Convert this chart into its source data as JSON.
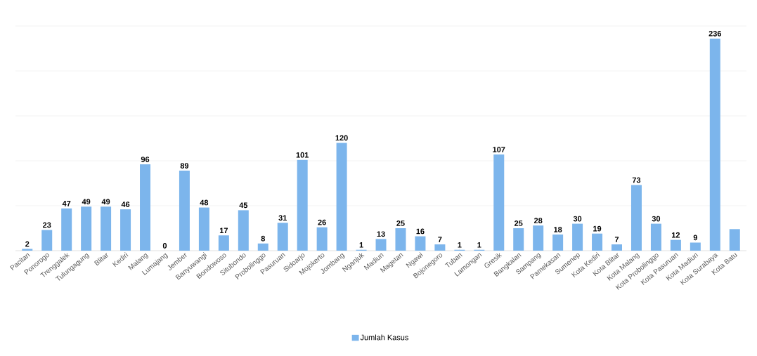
{
  "chart_data": {
    "type": "bar",
    "categories": [
      "Pacitan",
      "Ponorogo",
      "Trenggalek",
      "Tulungagung",
      "Blitar",
      "Kediri",
      "Malang",
      "Lumajang",
      "Jember",
      "Banyuwangi",
      "Bondowoso",
      "Situbondo",
      "Probolinggo",
      "Pasuruan",
      "Sidoarjo",
      "Mojokerto",
      "Jombang",
      "Nganjuk",
      "Madiun",
      "Magetan",
      "Ngawi",
      "Bojonegoro",
      "Tuban",
      "Lamongan",
      "Gresik",
      "Bangkalan",
      "Sampang",
      "Pamekasan",
      "Sumenep",
      "Kota Kediri",
      "Kota Blitar",
      "Kota Malang",
      "Kota Probolinggo",
      "Kota Pasuruan",
      "Kota Madiun",
      "Kota Surabaya",
      "Kota Batu"
    ],
    "series": [
      {
        "name": "Jumlah Kasus",
        "color": "#7cb5ec",
        "values": [
          2,
          23,
          47,
          49,
          49,
          46,
          96,
          0,
          89,
          48,
          17,
          45,
          8,
          31,
          101,
          26,
          120,
          1,
          13,
          25,
          16,
          7,
          1,
          1,
          107,
          25,
          28,
          18,
          30,
          19,
          7,
          73,
          30,
          12,
          9,
          236,
          24
        ],
        "value_labels": [
          "2",
          "23",
          "47",
          "49",
          "49",
          "46",
          "96",
          "0",
          "89",
          "48",
          "17",
          "45",
          "8",
          "31",
          "101",
          "26",
          "120",
          "1",
          "13",
          "25",
          "16",
          "7",
          "1",
          "1",
          "107",
          "25",
          "28",
          "18",
          "30",
          "19",
          "7",
          "73",
          "30",
          "12",
          "9",
          "236",
          null
        ]
      }
    ],
    "ylim": [
      0,
      250
    ],
    "yticks": [
      {
        "value": 0,
        "label": null
      },
      {
        "value": 50,
        "label": null
      },
      {
        "value": 100,
        "label": null
      },
      {
        "value": 150,
        "label": null
      },
      {
        "value": 200,
        "label": null
      },
      {
        "value": 250,
        "label": null
      }
    ],
    "grid": "y",
    "legend": "bottom",
    "tick_labels": "x"
  }
}
